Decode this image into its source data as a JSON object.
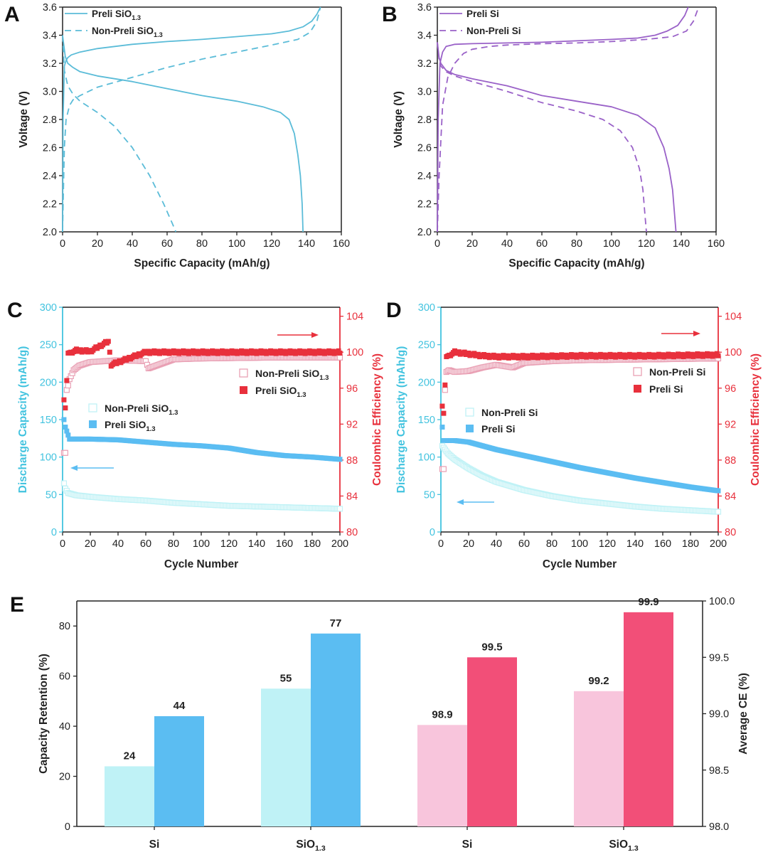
{
  "colors": {
    "siox": "#5bbcd8",
    "si": "#9a62c8",
    "red": "#e8303c",
    "pinkHollow": "#e9a0b4",
    "cyanLight": "#bff2f6",
    "blue": "#5bbdf2",
    "pinkLight": "#f8c5dc",
    "redBar": "#f24f78",
    "axisCyan": "#42c3df",
    "axisRed": "#e8303c"
  },
  "chart_data": [
    {
      "panel": "A",
      "type": "line",
      "xlabel": "Specific Capacity (mAh/g)",
      "ylabel": "Voltage (V)",
      "xlim": [
        0,
        160
      ],
      "ylim": [
        2.0,
        3.6
      ],
      "xticks": [
        "0",
        "20",
        "40",
        "60",
        "80",
        "100",
        "120",
        "140",
        "160"
      ],
      "yticks": [
        "2.0",
        "2.2",
        "2.4",
        "2.6",
        "2.8",
        "3.0",
        "3.2",
        "3.4",
        "3.6"
      ],
      "legend": [
        "Preli SiO",
        "Non-Preli SiO"
      ],
      "legend_sub": "1.3",
      "series": [
        {
          "name": "Preli SiO1.3 charge",
          "style": "solid",
          "x": [
            0,
            0.3,
            1,
            2,
            3,
            5,
            10,
            20,
            40,
            60,
            80,
            100,
            120,
            130,
            138,
            143,
            146,
            148
          ],
          "y": [
            2.0,
            2.8,
            3.18,
            3.22,
            3.24,
            3.26,
            3.28,
            3.305,
            3.335,
            3.355,
            3.37,
            3.39,
            3.41,
            3.43,
            3.46,
            3.5,
            3.55,
            3.6
          ]
        },
        {
          "name": "Preli SiO1.3 discharge",
          "style": "solid",
          "x": [
            0,
            0.5,
            1.5,
            3,
            6,
            10,
            20,
            40,
            60,
            80,
            100,
            115,
            125,
            130,
            133,
            135,
            136.5,
            137.5,
            138
          ],
          "y": [
            3.4,
            3.35,
            3.25,
            3.2,
            3.17,
            3.14,
            3.11,
            3.07,
            3.02,
            2.97,
            2.93,
            2.89,
            2.85,
            2.8,
            2.7,
            2.55,
            2.4,
            2.2,
            2.0
          ]
        },
        {
          "name": "Non-Preli SiO1.3 charge",
          "style": "dashed",
          "x": [
            0,
            0.5,
            1,
            2,
            4,
            6,
            10,
            20,
            40,
            60,
            80,
            100,
            120,
            135,
            142,
            146,
            148
          ],
          "y": [
            2.0,
            2.3,
            2.6,
            2.8,
            2.9,
            2.94,
            2.97,
            3.03,
            3.1,
            3.17,
            3.23,
            3.28,
            3.33,
            3.37,
            3.42,
            3.5,
            3.6
          ]
        },
        {
          "name": "Non-Preli SiO1.3 discharge",
          "style": "dashed",
          "x": [
            0,
            1,
            3,
            6,
            10,
            20,
            30,
            40,
            50,
            58,
            63,
            65
          ],
          "y": [
            3.4,
            3.15,
            3.04,
            2.98,
            2.93,
            2.85,
            2.75,
            2.6,
            2.4,
            2.2,
            2.06,
            2.0
          ]
        }
      ]
    },
    {
      "panel": "B",
      "type": "line",
      "xlabel": "Specific Capacity (mAh/g)",
      "ylabel": "Voltage (V)",
      "xlim": [
        0,
        160
      ],
      "ylim": [
        2.0,
        3.6
      ],
      "xticks": [
        "0",
        "20",
        "40",
        "60",
        "80",
        "100",
        "120",
        "140",
        "160"
      ],
      "yticks": [
        "2.0",
        "2.2",
        "2.4",
        "2.6",
        "2.8",
        "3.0",
        "3.2",
        "3.4",
        "3.6"
      ],
      "legend": [
        "Preli Si",
        "Non-Preli Si"
      ],
      "series": [
        {
          "name": "Preli Si charge",
          "style": "solid",
          "x": [
            0,
            0.5,
            1.5,
            3,
            5,
            10,
            20,
            40,
            60,
            80,
            100,
            115,
            125,
            132,
            138,
            142,
            144
          ],
          "y": [
            2.0,
            2.8,
            3.2,
            3.28,
            3.32,
            3.335,
            3.34,
            3.345,
            3.35,
            3.36,
            3.37,
            3.38,
            3.4,
            3.43,
            3.47,
            3.54,
            3.6
          ]
        },
        {
          "name": "Preli Si discharge",
          "style": "solid",
          "x": [
            0,
            1,
            2,
            5,
            10,
            20,
            40,
            60,
            80,
            100,
            115,
            125,
            130,
            133,
            135,
            136,
            137
          ],
          "y": [
            3.35,
            3.24,
            3.2,
            3.15,
            3.12,
            3.09,
            3.04,
            2.97,
            2.93,
            2.89,
            2.83,
            2.74,
            2.6,
            2.45,
            2.3,
            2.15,
            2.0
          ]
        },
        {
          "name": "Non-Preli Si charge",
          "style": "dashed",
          "x": [
            0,
            1,
            3,
            6,
            10,
            15,
            20,
            30,
            40,
            60,
            80,
            100,
            120,
            135,
            143,
            147,
            150
          ],
          "y": [
            2.0,
            2.4,
            2.9,
            3.1,
            3.2,
            3.27,
            3.3,
            3.32,
            3.33,
            3.34,
            3.345,
            3.355,
            3.37,
            3.39,
            3.43,
            3.5,
            3.6
          ]
        },
        {
          "name": "Non-Preli Si discharge",
          "style": "dashed",
          "x": [
            0,
            1,
            2,
            5,
            10,
            20,
            40,
            60,
            80,
            95,
            105,
            112,
            116,
            118,
            119,
            120
          ],
          "y": [
            3.35,
            3.22,
            3.18,
            3.14,
            3.11,
            3.07,
            3.0,
            2.92,
            2.86,
            2.8,
            2.72,
            2.6,
            2.45,
            2.3,
            2.15,
            2.0
          ]
        }
      ]
    },
    {
      "panel": "C",
      "type": "scatter",
      "xlabel": "Cycle Number",
      "ylabel": "Discharge Capacity (mAh/g)",
      "y2label": "Coulombic Efficiency (%)",
      "xlim": [
        0,
        200
      ],
      "ylim": [
        0,
        300
      ],
      "y2lim": [
        80,
        105
      ],
      "xticks": [
        "0",
        "20",
        "40",
        "60",
        "80",
        "100",
        "120",
        "140",
        "160",
        "180",
        "200"
      ],
      "yticks": [
        "0",
        "50",
        "100",
        "150",
        "200",
        "250",
        "300"
      ],
      "y2ticks": [
        "80",
        "84",
        "88",
        "92",
        "96",
        "100",
        "104"
      ],
      "legend_left": [
        "Non-Preli SiO",
        "Preli SiO"
      ],
      "legend_right": [
        "Non-Preli SiO",
        "Preli SiO"
      ],
      "legend_sub": "1.3",
      "capacity": {
        "preli": {
          "x": [
            1,
            2,
            5,
            10,
            20,
            40,
            60,
            80,
            100,
            120,
            140,
            160,
            180,
            200
          ],
          "y": [
            150,
            140,
            124,
            124,
            124,
            123,
            120,
            117,
            115,
            112,
            106,
            102,
            100,
            97
          ]
        },
        "nonpreli": {
          "x": [
            1,
            2,
            4,
            10,
            20,
            40,
            60,
            80,
            100,
            120,
            140,
            160,
            180,
            200
          ],
          "y": [
            65,
            58,
            52,
            49,
            47,
            44,
            42,
            39,
            37,
            35,
            34,
            33,
            32,
            31
          ]
        }
      },
      "efficiency": {
        "preli": {
          "x": [
            1,
            2,
            4,
            10,
            20,
            33,
            35,
            60,
            100,
            150,
            200
          ],
          "y": [
            94.7,
            93.8,
            99.9,
            100.2,
            100.1,
            101.2,
            98.6,
            100.0,
            100.0,
            100.0,
            100.0
          ]
        },
        "nonpreli": {
          "x": [
            2,
            3,
            4,
            5,
            8,
            12,
            20,
            40,
            60,
            62,
            80,
            100,
            150,
            200
          ],
          "y": [
            88.8,
            95.8,
            96.3,
            97.0,
            98.0,
            98.5,
            98.9,
            99.1,
            99.0,
            98.2,
            99.2,
            99.3,
            99.4,
            99.4
          ]
        }
      }
    },
    {
      "panel": "D",
      "type": "scatter",
      "xlabel": "Cycle Number",
      "ylabel": "Discharge Capacity (mAh/g)",
      "y2label": "Coulombic Efficiency (%)",
      "xlim": [
        0,
        200
      ],
      "ylim": [
        0,
        300
      ],
      "y2lim": [
        80,
        105
      ],
      "xticks": [
        "0",
        "20",
        "40",
        "60",
        "80",
        "100",
        "120",
        "140",
        "160",
        "180",
        "200"
      ],
      "yticks": [
        "0",
        "50",
        "100",
        "150",
        "200",
        "250",
        "300"
      ],
      "y2ticks": [
        "80",
        "84",
        "88",
        "92",
        "96",
        "100",
        "104"
      ],
      "legend_left": [
        "Non-Preli Si",
        "Preli Si"
      ],
      "legend_right": [
        "Non-Preli Si",
        "Preli Si"
      ],
      "capacity": {
        "preli": {
          "x": [
            1,
            2,
            5,
            10,
            20,
            30,
            40,
            60,
            80,
            100,
            120,
            140,
            160,
            180,
            200
          ],
          "y": [
            140,
            122,
            122,
            122,
            120,
            115,
            110,
            102,
            94,
            86,
            79,
            72,
            66,
            60,
            55
          ]
        },
        "nonpreli": {
          "x": [
            1,
            3,
            5,
            10,
            20,
            30,
            40,
            60,
            80,
            100,
            120,
            140,
            160,
            180,
            200
          ],
          "y": [
            115,
            110,
            105,
            97,
            85,
            75,
            67,
            56,
            48,
            42,
            38,
            34,
            31,
            29,
            27
          ]
        }
      },
      "efficiency": {
        "preli": {
          "x": [
            1,
            2,
            4,
            10,
            20,
            30,
            40,
            60,
            100,
            150,
            200
          ],
          "y": [
            94.0,
            93.2,
            99.5,
            100.0,
            99.8,
            99.6,
            99.5,
            99.5,
            99.6,
            99.6,
            99.7
          ]
        },
        "nonpreli": {
          "x": [
            2,
            3,
            4,
            6,
            10,
            20,
            30,
            40,
            52,
            60,
            80,
            100,
            150,
            200
          ],
          "y": [
            87.0,
            95.8,
            97.8,
            98.0,
            97.8,
            97.9,
            98.3,
            98.6,
            98.3,
            98.8,
            99.0,
            99.1,
            99.2,
            99.3
          ]
        }
      }
    },
    {
      "panel": "E",
      "type": "bar",
      "left": {
        "ylabel": "Capacity Retention (%)",
        "ylim": [
          0,
          90
        ],
        "yticks": [
          "0",
          "20",
          "40",
          "60",
          "80"
        ],
        "categories": [
          "Si",
          "SiO"
        ],
        "category_sub": [
          null,
          "1.3"
        ],
        "series": [
          {
            "name": "Non-Preli",
            "values": [
              24,
              55
            ]
          },
          {
            "name": "Preli",
            "values": [
              44,
              77
            ]
          }
        ],
        "value_labels": [
          "24",
          "44",
          "55",
          "77"
        ]
      },
      "right": {
        "ylabel": "Average CE (%)",
        "ylim": [
          98.0,
          100.0
        ],
        "yticks": [
          "98.0",
          "98.5",
          "99.0",
          "99.5",
          "100.0"
        ],
        "categories": [
          "Si",
          "SiO"
        ],
        "category_sub": [
          null,
          "1.3"
        ],
        "series": [
          {
            "name": "Non-Preli",
            "values": [
              98.9,
              99.2
            ]
          },
          {
            "name": "Preli",
            "values": [
              99.5,
              99.9
            ]
          }
        ],
        "value_labels": [
          "98.9",
          "99.5",
          "99.2",
          "99.9"
        ]
      }
    }
  ]
}
